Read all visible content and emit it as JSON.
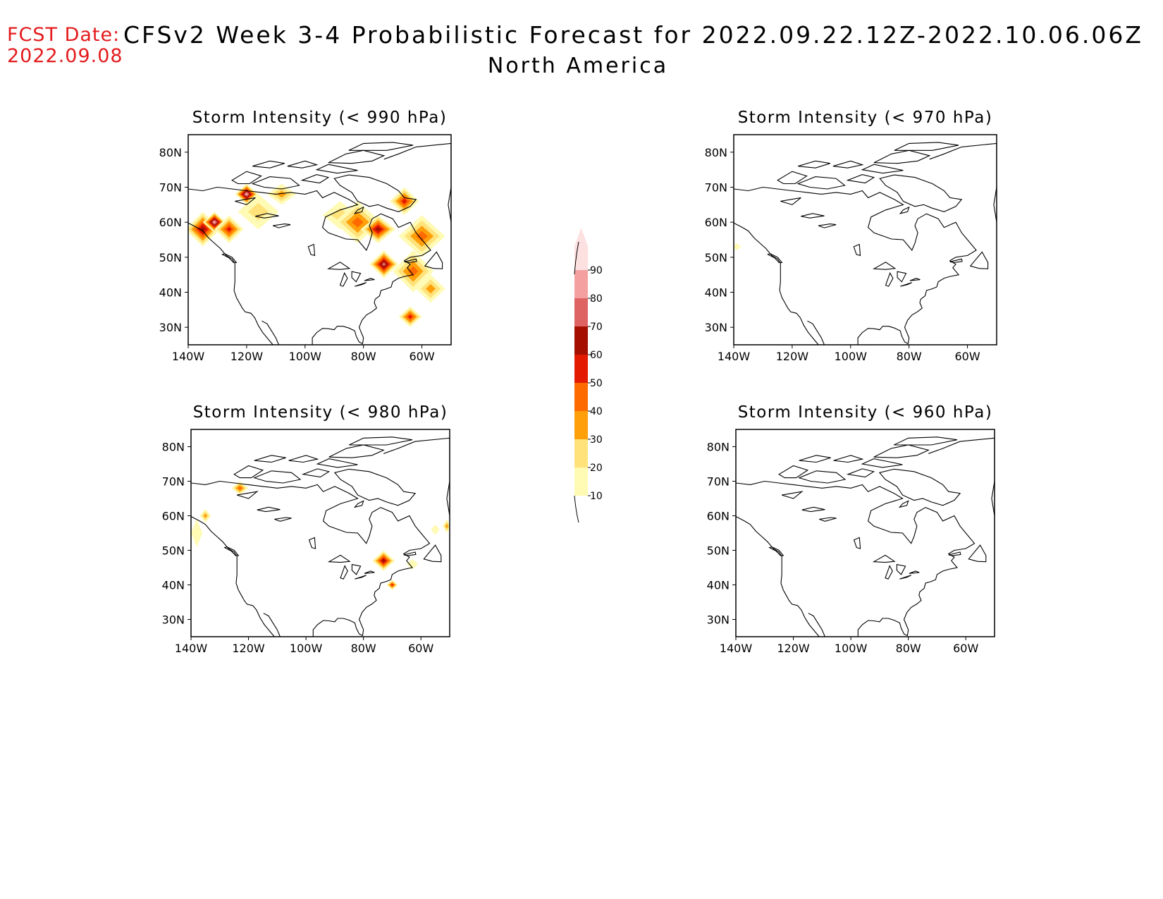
{
  "header": {
    "fcst_label": "FCST Date:",
    "fcst_date": "2022.09.08",
    "title": "CFSv2 Week 3-4 Probabilistic Forecast for 2022.09.22.12Z-2022.10.06.06Z",
    "region": "North America"
  },
  "lat_labels": [
    "80N",
    "70N",
    "60N",
    "50N",
    "40N",
    "30N"
  ],
  "lon_labels": [
    "140W",
    "120W",
    "100W",
    "80W",
    "60W"
  ],
  "panels": [
    {
      "id": "p990",
      "title": "Storm Intensity (< 990 hPa)",
      "blobs": [
        {
          "lon": -135,
          "lat": 58,
          "rx": 6,
          "ry": 5,
          "level": 60
        },
        {
          "lon": -131,
          "lat": 60,
          "rx": 4,
          "ry": 3,
          "level": 80
        },
        {
          "lon": -126,
          "lat": 58,
          "rx": 5,
          "ry": 4,
          "level": 50
        },
        {
          "lon": -120,
          "lat": 68,
          "rx": 4,
          "ry": 3,
          "level": 80
        },
        {
          "lon": -116,
          "lat": 63,
          "rx": 7,
          "ry": 5,
          "level": 20
        },
        {
          "lon": -108,
          "lat": 68,
          "rx": 5,
          "ry": 3,
          "level": 30
        },
        {
          "lon": -88,
          "lat": 62,
          "rx": 6,
          "ry": 4,
          "level": 20
        },
        {
          "lon": -82,
          "lat": 60,
          "rx": 8,
          "ry": 6,
          "level": 40
        },
        {
          "lon": -75,
          "lat": 58,
          "rx": 6,
          "ry": 4,
          "level": 60
        },
        {
          "lon": -73,
          "lat": 48,
          "rx": 5,
          "ry": 4,
          "level": 70
        },
        {
          "lon": -66,
          "lat": 66,
          "rx": 5,
          "ry": 4,
          "level": 50
        },
        {
          "lon": -60,
          "lat": 56,
          "rx": 8,
          "ry": 6,
          "level": 40
        },
        {
          "lon": -63,
          "lat": 46,
          "rx": 7,
          "ry": 6,
          "level": 40
        },
        {
          "lon": -57,
          "lat": 41,
          "rx": 5,
          "ry": 4,
          "level": 30
        },
        {
          "lon": -64,
          "lat": 33,
          "rx": 4,
          "ry": 3,
          "level": 50
        }
      ]
    },
    {
      "id": "p970",
      "title": "Storm Intensity (< 970 hPa)",
      "blobs": [
        {
          "lon": -139,
          "lat": 53,
          "rx": 1.5,
          "ry": 1,
          "level": 10
        }
      ]
    },
    {
      "id": "p980",
      "title": "Storm Intensity (< 980 hPa)",
      "blobs": [
        {
          "lon": -123,
          "lat": 68,
          "rx": 3,
          "ry": 2,
          "level": 40
        },
        {
          "lon": -135,
          "lat": 60,
          "rx": 2,
          "ry": 2,
          "level": 30
        },
        {
          "lon": -138,
          "lat": 55,
          "rx": 2,
          "ry": 4,
          "level": 10
        },
        {
          "lon": -73,
          "lat": 47,
          "rx": 4,
          "ry": 3,
          "level": 60
        },
        {
          "lon": -70,
          "lat": 40,
          "rx": 2,
          "ry": 1.5,
          "level": 50
        },
        {
          "lon": -63,
          "lat": 46,
          "rx": 2,
          "ry": 1.5,
          "level": 10
        },
        {
          "lon": -55,
          "lat": 56,
          "rx": 1.5,
          "ry": 1.5,
          "level": 10
        },
        {
          "lon": -51,
          "lat": 57,
          "rx": 1.5,
          "ry": 2,
          "level": 30
        }
      ]
    },
    {
      "id": "p960",
      "title": "Storm Intensity (< 960 hPa)",
      "blobs": []
    }
  ],
  "colorbar": {
    "labels": [
      "10",
      "20",
      "30",
      "40",
      "50",
      "60",
      "70",
      "80",
      "90"
    ],
    "colors": [
      "#fffab4",
      "#ffe27a",
      "#ffa00a",
      "#ff6a00",
      "#e31a00",
      "#a50f00",
      "#de6464",
      "#f5a0a0",
      "#fde0e0"
    ]
  }
}
